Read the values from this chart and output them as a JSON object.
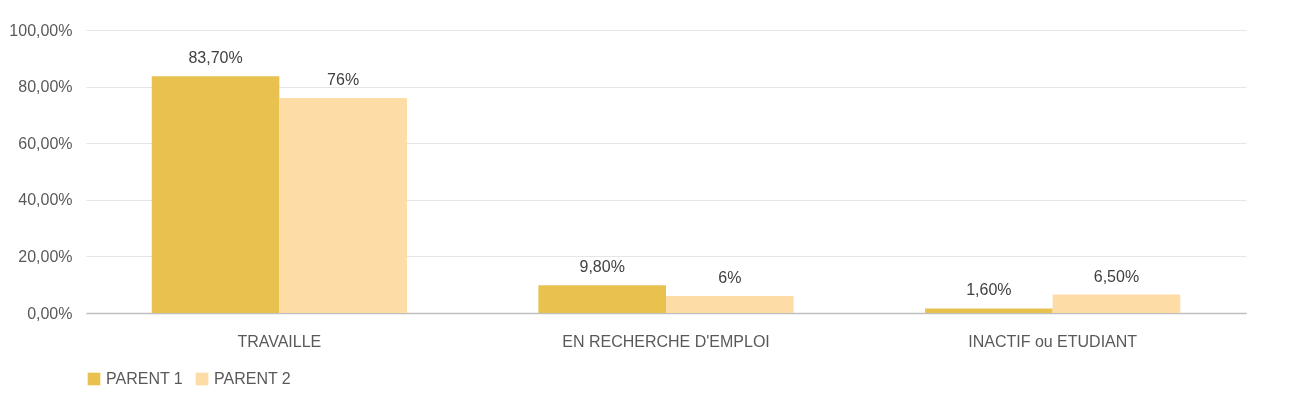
{
  "chart_data": {
    "type": "bar",
    "categories": [
      "TRAVAILLE",
      "EN RECHERCHE D'EMPLOI",
      "INACTIF ou ETUDIANT"
    ],
    "series": [
      {
        "name": "PARENT 1",
        "color": "#e8c14e",
        "values": [
          83.7,
          9.8,
          1.6
        ],
        "value_labels": [
          "83,70%",
          "9,80%",
          "1,60%"
        ]
      },
      {
        "name": "PARENT 2",
        "color": "#fddca5",
        "values": [
          76,
          6,
          6.5
        ],
        "value_labels": [
          "76%",
          "6%",
          "6,50%"
        ]
      }
    ],
    "ylim": [
      0,
      100
    ],
    "yticks": [
      {
        "value": 0,
        "label": "0,00%"
      },
      {
        "value": 20,
        "label": "20,00%"
      },
      {
        "value": 40,
        "label": "40,00%"
      },
      {
        "value": 60,
        "label": "60,00%"
      },
      {
        "value": 80,
        "label": "80,00%"
      },
      {
        "value": 100,
        "label": "100,00%"
      }
    ],
    "grid": "y",
    "legend": "bottom"
  }
}
